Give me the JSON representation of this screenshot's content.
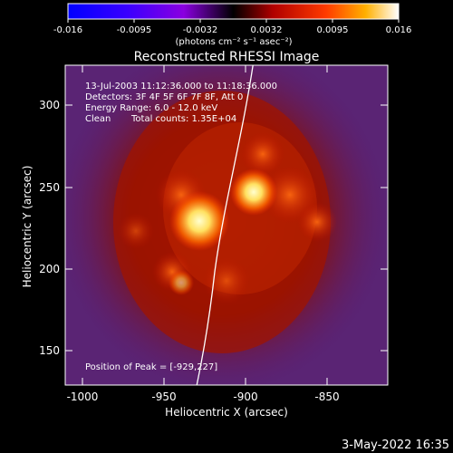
{
  "colorbar": {
    "ticks": [
      "-0.016",
      "-0.0095",
      "-0.0032",
      "0.0032",
      "0.0095",
      "0.016"
    ],
    "units_label": "(photons cm⁻² s⁻¹ asec⁻²)"
  },
  "title": "Reconstructed RHESSI Image",
  "info": {
    "line1": "13-Jul-2003 11:12:36.000 to 11:18:36.000",
    "line2": "Detectors: 3F 4F 5F 6F 7F 8F, Att 0",
    "line3": "Energy Range: 6.0 - 12.0 keV",
    "line4_method": "Clean",
    "line4_counts": "Total counts: 1.35E+04"
  },
  "peak_label": "Position of Peak = [-929,227]",
  "axes": {
    "xlabel": "Heliocentric X (arcsec)",
    "ylabel": "Heliocentric Y (arcsec)",
    "x_ticks": [
      "-1000",
      "-950",
      "-900",
      "-850"
    ],
    "y_ticks": [
      "150",
      "200",
      "250",
      "300"
    ]
  },
  "timestamp": "3-May-2022 16:35",
  "colors": {
    "background": "#000000",
    "limb": "#ffffff",
    "hot_peak": "#ffffc0",
    "plasma_low": "#6a2a8a"
  }
}
